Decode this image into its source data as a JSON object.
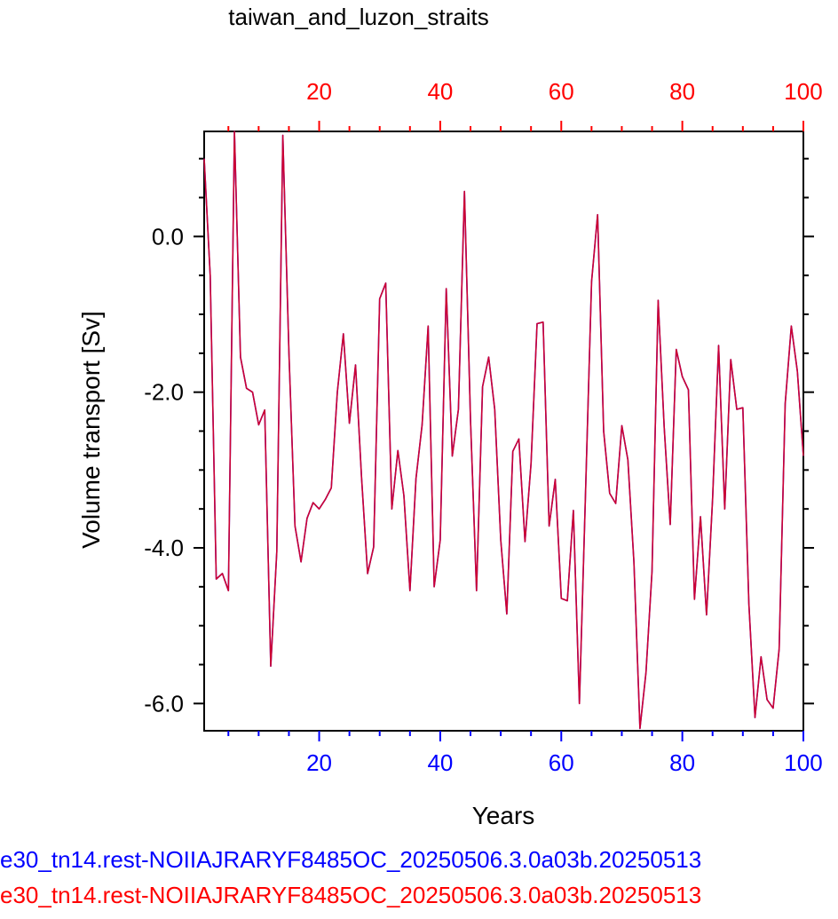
{
  "chart_data": {
    "type": "line",
    "title": "taiwan_and_luzon_straits",
    "xlabel": "Years",
    "ylabel": "Volume transport [Sv]",
    "xlim": [
      1,
      100
    ],
    "ylim": [
      -6.35,
      1.35
    ],
    "x_ticks": [
      20,
      40,
      60,
      80,
      100
    ],
    "y_ticks": [
      0.0,
      -2.0,
      -4.0,
      -6.0
    ],
    "y_tick_labels": [
      "0.0",
      "-2.0",
      "-4.0",
      "-6.0"
    ],
    "bottom_axis_color": "#0000ff",
    "top_axis_color": "#ff0000",
    "series": [
      {
        "name": "e30_tn14.rest-NOIIAJRARYF8485OC_20250506.3.0a03b.20250513",
        "color": "#0000ff",
        "x": [
          1,
          2,
          3,
          4,
          5,
          6,
          7,
          8,
          9,
          10,
          11,
          12,
          13,
          14,
          15,
          16,
          17,
          18,
          19,
          20,
          21,
          22,
          23,
          24,
          25,
          26,
          27,
          28,
          29,
          30,
          31,
          32,
          33,
          34,
          35,
          36,
          37,
          38,
          39,
          40,
          41,
          42,
          43,
          44,
          45,
          46,
          47,
          48,
          49,
          50,
          51,
          52,
          53,
          54,
          55,
          56,
          57,
          58,
          59,
          60,
          61,
          62,
          63,
          64,
          65,
          66,
          67,
          68,
          69,
          70,
          71,
          72,
          73,
          74,
          75,
          76,
          77,
          78,
          79,
          80,
          81,
          82,
          83,
          84,
          85,
          86,
          87,
          88,
          89,
          90,
          91,
          92,
          93,
          94,
          95,
          96,
          97,
          98,
          99,
          100
        ],
        "y": [
          1.0,
          -0.5,
          -4.4,
          -4.33,
          -4.55,
          1.35,
          -1.55,
          -1.95,
          -2.0,
          -2.42,
          -2.23,
          -5.52,
          -4.05,
          1.3,
          -1.5,
          -3.72,
          -4.18,
          -3.62,
          -3.42,
          -3.5,
          -3.38,
          -3.23,
          -2.0,
          -1.25,
          -2.4,
          -1.65,
          -3.1,
          -4.33,
          -3.99,
          -0.8,
          -0.6,
          -3.5,
          -2.75,
          -3.33,
          -4.55,
          -3.11,
          -2.42,
          -1.15,
          -4.5,
          -3.9,
          -0.67,
          -2.82,
          -2.22,
          0.58,
          -2.35,
          -4.55,
          -1.93,
          -1.55,
          -2.22,
          -3.9,
          -4.85,
          -2.76,
          -2.6,
          -3.92,
          -2.92,
          -1.12,
          -1.1,
          -3.72,
          -3.12,
          -4.65,
          -4.68,
          -3.52,
          -6.0,
          -3.33,
          -0.58,
          0.28,
          -2.5,
          -3.3,
          -3.43,
          -2.43,
          -2.87,
          -4.18,
          -6.32,
          -5.6,
          -4.3,
          -0.82,
          -2.45,
          -3.7,
          -1.45,
          -1.8,
          -1.97,
          -4.66,
          -3.6,
          -4.86,
          -3.38,
          -1.4,
          -3.5,
          -1.58,
          -2.22,
          -2.2,
          -4.72,
          -6.18,
          -5.4,
          -5.95,
          -6.06,
          -5.3,
          -2.15,
          -1.15,
          -1.73,
          -2.82
        ]
      },
      {
        "name": "e30_tn14.rest-NOIIAJRARYF8485OC_20250506.3.0a03b.20250513",
        "color": "#ff0000",
        "x": [
          1,
          2,
          3,
          4,
          5,
          6,
          7,
          8,
          9,
          10,
          11,
          12,
          13,
          14,
          15,
          16,
          17,
          18,
          19,
          20,
          21,
          22,
          23,
          24,
          25,
          26,
          27,
          28,
          29,
          30,
          31,
          32,
          33,
          34,
          35,
          36,
          37,
          38,
          39,
          40,
          41,
          42,
          43,
          44,
          45,
          46,
          47,
          48,
          49,
          50,
          51,
          52,
          53,
          54,
          55,
          56,
          57,
          58,
          59,
          60,
          61,
          62,
          63,
          64,
          65,
          66,
          67,
          68,
          69,
          70,
          71,
          72,
          73,
          74,
          75,
          76,
          77,
          78,
          79,
          80,
          81,
          82,
          83,
          84,
          85,
          86,
          87,
          88,
          89,
          90,
          91,
          92,
          93,
          94,
          95,
          96,
          97,
          98,
          99,
          100
        ],
        "y": [
          1.0,
          -0.5,
          -4.4,
          -4.33,
          -4.55,
          1.35,
          -1.55,
          -1.95,
          -2.0,
          -2.42,
          -2.23,
          -5.52,
          -4.05,
          1.3,
          -1.5,
          -3.72,
          -4.18,
          -3.62,
          -3.42,
          -3.5,
          -3.38,
          -3.23,
          -2.0,
          -1.25,
          -2.4,
          -1.65,
          -3.1,
          -4.33,
          -3.99,
          -0.8,
          -0.6,
          -3.5,
          -2.75,
          -3.33,
          -4.55,
          -3.11,
          -2.42,
          -1.15,
          -4.5,
          -3.9,
          -0.67,
          -2.82,
          -2.22,
          0.58,
          -2.35,
          -4.55,
          -1.93,
          -1.55,
          -2.22,
          -3.9,
          -4.85,
          -2.76,
          -2.6,
          -3.92,
          -2.92,
          -1.12,
          -1.1,
          -3.72,
          -3.12,
          -4.65,
          -4.68,
          -3.52,
          -6.0,
          -3.33,
          -0.58,
          0.28,
          -2.5,
          -3.3,
          -3.43,
          -2.43,
          -2.87,
          -4.18,
          -6.32,
          -5.6,
          -4.3,
          -0.82,
          -2.45,
          -3.7,
          -1.45,
          -1.8,
          -1.97,
          -4.66,
          -3.6,
          -4.86,
          -3.38,
          -1.4,
          -3.5,
          -1.58,
          -2.22,
          -2.2,
          -4.72,
          -6.18,
          -5.4,
          -5.95,
          -6.06,
          -5.3,
          -2.15,
          -1.15,
          -1.73,
          -2.82
        ]
      }
    ]
  }
}
